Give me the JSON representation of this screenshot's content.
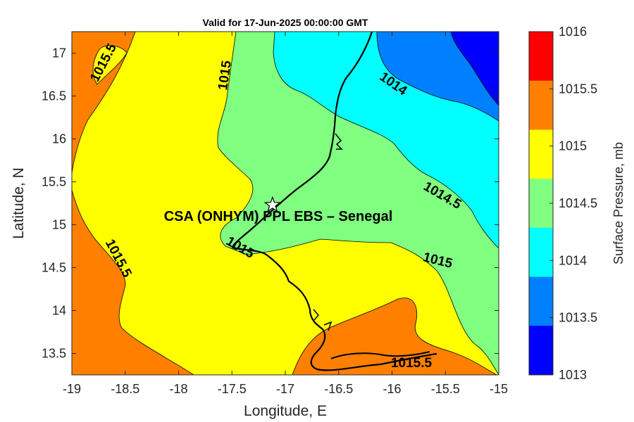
{
  "title": "Valid for 17-Jun-2025 00:00:00 GMT",
  "xlabel": "Longitude, E",
  "ylabel": "Latitude, N",
  "x_ticks": [
    "-19",
    "-18.5",
    "-18",
    "-17.5",
    "-17",
    "-16.5",
    "-16",
    "-15.5",
    "-15"
  ],
  "y_ticks": [
    "13.5",
    "14",
    "14.5",
    "15",
    "15.5",
    "16",
    "16.5",
    "17"
  ],
  "site": {
    "label": "CSA (ONHYM) PPL EBS  – Senegal",
    "lon": -17.12,
    "lat": 15.23
  },
  "contour_labels": {
    "nw_1015_5": "1015.5",
    "n_1015": "1015",
    "ne_1014": "1014",
    "e_1014_5": "1014.5",
    "se_1015": "1015",
    "center_1015": "1015",
    "w_1015_5": "1015.5",
    "s_1015_5": "1015.5"
  },
  "colorbar": {
    "label": "Surface Pressure, mb",
    "ticks": [
      "1016",
      "1015.5",
      "1015",
      "1014.5",
      "1014",
      "1013.5",
      "1013"
    ],
    "colors": {
      "1015.5-1016": "#ff0000",
      "1015-1015.5": "#ff8000",
      "1014.5-1015": "#ffff00",
      "1014-1014.5": "#80ff80",
      "1013.5-1014": "#00ffff",
      "1013-1013.5": "#0080ff",
      "below-1013.5": "#0000ff"
    }
  },
  "chart_data": {
    "type": "contour",
    "title": "Valid for 17-Jun-2025 00:00:00 GMT",
    "xlabel": "Longitude, E",
    "ylabel": "Latitude, N",
    "xlim": [
      -19,
      -15
    ],
    "ylim": [
      13.25,
      17.25
    ],
    "levels": [
      1013,
      1013.5,
      1014,
      1014.5,
      1015,
      1015.5,
      1016
    ],
    "colorbar_label": "Surface Pressure, mb",
    "legend": "colorbar-right",
    "grid": false
  }
}
